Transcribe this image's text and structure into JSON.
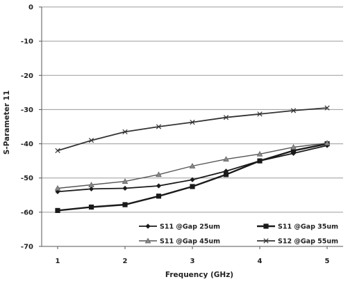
{
  "chart_data": {
    "type": "line",
    "title": "",
    "xlabel": "Frequency (GHz)",
    "ylabel": "S-Parameter 11",
    "xlim": [
      1,
      5
    ],
    "ylim": [
      -70,
      0
    ],
    "x_ticks": [
      "1",
      "2",
      "3",
      "4",
      "5"
    ],
    "y_ticks": [
      "0",
      "-10",
      "-20",
      "-30",
      "-40",
      "-50",
      "-60",
      "-70"
    ],
    "grid": true,
    "legend_position": "bottom-right inside plot",
    "series": [
      {
        "name": "S11 @Gap 25um",
        "marker": "diamond",
        "color": "#1a1a1a",
        "x": [
          1.0,
          1.5,
          2.0,
          2.5,
          3.0,
          3.5,
          4.0,
          4.5,
          5.0
        ],
        "y": [
          -54.0,
          -53.2,
          -53.0,
          -52.3,
          -50.5,
          -48.0,
          -45.0,
          -42.8,
          -40.5
        ]
      },
      {
        "name": "S11 @Gap 35um",
        "marker": "square",
        "color": "#1a1a1a",
        "x": [
          1.0,
          1.5,
          2.0,
          2.5,
          3.0,
          3.5,
          4.0,
          4.5,
          5.0
        ],
        "y": [
          -59.5,
          -58.5,
          -57.8,
          -55.3,
          -52.5,
          -49.0,
          -45.0,
          -42.0,
          -40.0
        ]
      },
      {
        "name": "S11 @Gap 45um",
        "marker": "triangle",
        "color": "#555555",
        "x": [
          1.0,
          1.5,
          2.0,
          2.5,
          3.0,
          3.5,
          4.0,
          4.5,
          5.0
        ],
        "y": [
          -53.0,
          -52.0,
          -51.0,
          -49.0,
          -46.5,
          -44.5,
          -43.0,
          -41.0,
          -39.8
        ]
      },
      {
        "name": "S12 @Gap 55um",
        "marker": "cross",
        "color": "#333333",
        "x": [
          1.0,
          1.5,
          2.0,
          2.5,
          3.0,
          3.5,
          4.0,
          4.5,
          5.0
        ],
        "y": [
          -42.0,
          -39.0,
          -36.5,
          -35.0,
          -33.7,
          -32.3,
          -31.3,
          -30.3,
          -29.5
        ]
      }
    ]
  }
}
